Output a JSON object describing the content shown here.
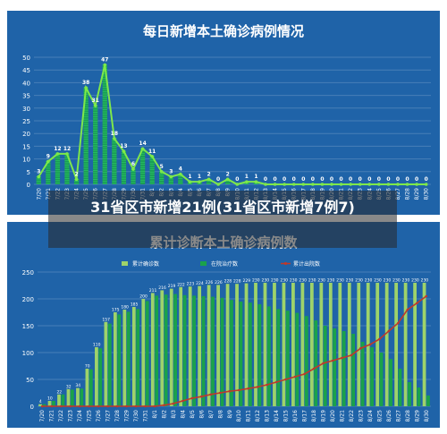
{
  "overlay": {
    "headline": "31省区市新增21例(31省区市新增7例7)"
  },
  "chart_data": [
    {
      "type": "line",
      "title": "每日新增本土确诊病例情况",
      "categories": [
        "7/20",
        "7/21",
        "7/22",
        "7/23",
        "7/24",
        "7/25",
        "7/26",
        "7/27",
        "7/28",
        "7/29",
        "7/30",
        "7/31",
        "8/1",
        "8/2",
        "8/3",
        "8/4",
        "8/5",
        "8/6",
        "8/7",
        "8/8",
        "8/9",
        "8/10",
        "8/11",
        "8/12",
        "8/13",
        "8/14",
        "8/15",
        "8/16",
        "8/17",
        "8/18",
        "8/19",
        "8/20",
        "8/21",
        "8/22",
        "8/23",
        "8/24",
        "8/25",
        "8/26",
        "8/27",
        "8/28",
        "8/29",
        "8/30"
      ],
      "y_ticks": [
        0,
        5,
        10,
        15,
        20,
        25,
        30,
        35,
        40,
        45,
        50
      ],
      "ylim": [
        0,
        50
      ],
      "grid": true,
      "series": [
        {
          "values": [
            3,
            9,
            12,
            12,
            2,
            38,
            31,
            47,
            18,
            13,
            6,
            14,
            11,
            5,
            3,
            4,
            1,
            1,
            2,
            0,
            2,
            0,
            1,
            1,
            0,
            0,
            0,
            0,
            0,
            0,
            0,
            0,
            0,
            0,
            0,
            0,
            0,
            0,
            0,
            0,
            0,
            0
          ]
        }
      ],
      "colors": {
        "line": "#7ee84a",
        "bar": "#1aa24a",
        "label": "#ffffff"
      }
    },
    {
      "type": "bar",
      "title": "累计诊断本土确诊病例数",
      "categories": [
        "7/20",
        "7/21",
        "7/22",
        "7/23",
        "7/24",
        "7/25",
        "7/26",
        "7/27",
        "7/28",
        "7/29",
        "7/30",
        "7/31",
        "8/1",
        "8/2",
        "8/3",
        "8/4",
        "8/5",
        "8/6",
        "8/7",
        "8/8",
        "8/9",
        "8/10",
        "8/11",
        "8/12",
        "8/13",
        "8/14",
        "8/15",
        "8/16",
        "8/17",
        "8/18",
        "8/19",
        "8/20",
        "8/21",
        "8/22",
        "8/23",
        "8/24",
        "8/25",
        "8/26",
        "8/27",
        "8/28",
        "8/29",
        "8/30"
      ],
      "y_ticks": [
        0,
        50,
        100,
        150,
        200,
        250
      ],
      "ylim": [
        0,
        250
      ],
      "grid": true,
      "legend_position": "top",
      "series": [
        {
          "name": "累计确诊数",
          "color": "#9ed36a",
          "values": [
            4,
            10,
            22,
            32,
            34,
            70,
            110,
            157,
            175,
            180,
            185,
            200,
            211,
            216,
            219,
            222,
            223,
            224,
            226,
            226,
            228,
            228,
            229,
            230,
            230,
            230,
            230,
            230,
            230,
            230,
            230,
            230,
            230,
            230,
            230,
            230,
            230,
            230,
            230,
            230,
            230,
            230
          ]
        },
        {
          "name": "在院治疗数",
          "color": "#1aa24a",
          "values": [
            4,
            10,
            22,
            31,
            33,
            69,
            108,
            154,
            171,
            176,
            181,
            196,
            206,
            208,
            209,
            207,
            206,
            205,
            204,
            202,
            198,
            195,
            193,
            190,
            186,
            181,
            178,
            174,
            168,
            160,
            150,
            145,
            140,
            135,
            120,
            110,
            100,
            88,
            70,
            45,
            35,
            20
          ]
        },
        {
          "name": "累计出院数",
          "color": "#c0392b",
          "values": [
            0,
            0,
            0,
            0,
            0,
            0,
            0,
            0,
            0,
            0,
            0,
            0,
            0,
            2,
            5,
            10,
            15,
            18,
            22,
            25,
            28,
            30,
            33,
            36,
            40,
            45,
            50,
            55,
            60,
            70,
            80,
            85,
            90,
            95,
            108,
            115,
            125,
            140,
            155,
            180,
            192,
            205
          ]
        }
      ]
    }
  ]
}
